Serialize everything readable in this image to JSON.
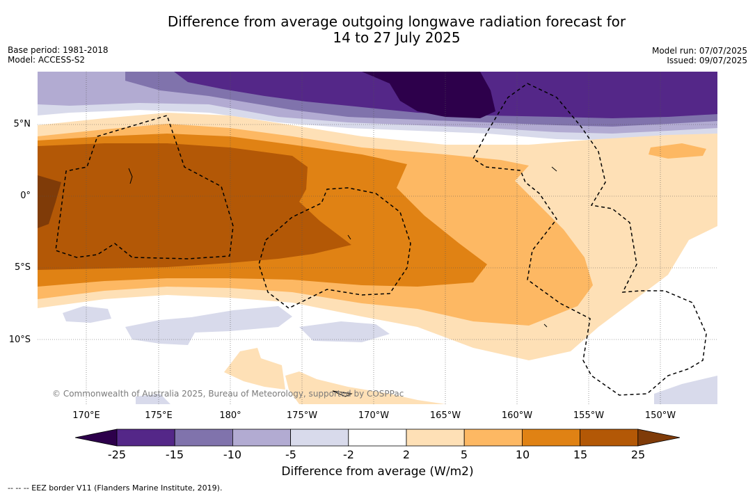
{
  "title": {
    "line1": "Difference from average outgoing longwave radiation forecast for",
    "line2": "14 to 27 July 2025"
  },
  "meta_left": {
    "base_period": "Base period: 1981-2018",
    "model": "Model: ACCESS-S2"
  },
  "meta_right": {
    "model_run": "Model run: 07/07/2025",
    "issued": "Issued: 09/07/2025"
  },
  "map": {
    "lon_labels": [
      "170°E",
      "175°E",
      "180°",
      "175°W",
      "170°W",
      "165°W",
      "160°W",
      "155°W",
      "150°W"
    ],
    "lat_labels": [
      "5°N",
      "0°",
      "5°S",
      "10°S"
    ],
    "copyright": "© Commonwealth of Australia 2025, Bureau of Meteorology, supported by COSPPac"
  },
  "colorbar": {
    "ticks": [
      "-25",
      "-15",
      "-10",
      "-5",
      "-2",
      "2",
      "5",
      "10",
      "15",
      "25"
    ],
    "colors": [
      "#2d004b",
      "#542788",
      "#8073ac",
      "#b2abd2",
      "#d8daeb",
      "#ffffff",
      "#fee0b6",
      "#fdb863",
      "#e08214",
      "#b35806",
      "#7f3b08"
    ],
    "label": "Difference from average (W/m2)"
  },
  "footnote": "-- -- -- EEZ border V11 (Flanders Marine Institute, 2019)."
}
